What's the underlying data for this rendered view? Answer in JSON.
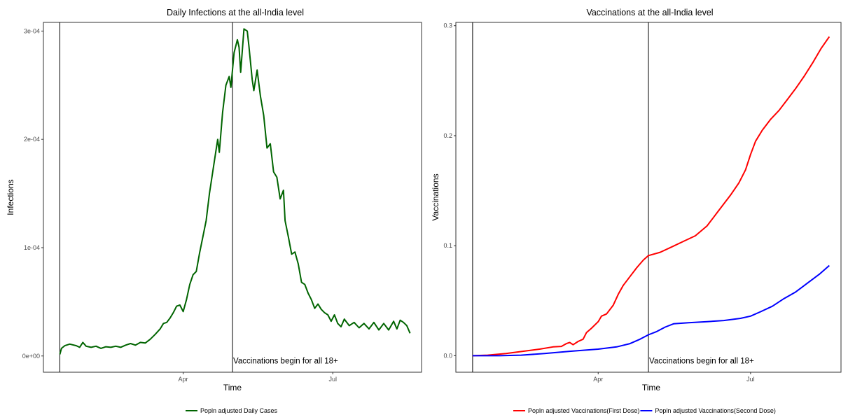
{
  "chart_data": [
    {
      "type": "line",
      "title": "Daily Infections at the all-India level",
      "xlabel": "Time",
      "ylabel": "Infections",
      "x_tick_labels": [
        "Apr",
        "Jul"
      ],
      "y_tick_labels": [
        "0e+00",
        "1e-04",
        "2e-04",
        "3e-04"
      ],
      "y_ticks": [
        0,
        0.0001,
        0.0002,
        0.0003
      ],
      "ylim": [
        -1.5e-05,
        0.000308
      ],
      "xlim": [
        "2021-01-06",
        "2021-08-24"
      ],
      "x_ticks": [
        "2021-04-01",
        "2021-07-01"
      ],
      "grid": false,
      "legend_position": "bottom",
      "vlines": [
        "2021-01-16",
        "2021-05-01"
      ],
      "annotation": {
        "text": "Vaccinations begin for all 18+",
        "x": "2021-05-01",
        "y": -4.5e-06
      },
      "series": [
        {
          "name": "Popln adjusted Daily Cases",
          "color": "#006400",
          "points": [
            [
              "2021-01-16",
              1.5e-06
            ],
            [
              "2021-01-17",
              7e-06
            ],
            [
              "2021-01-19",
              9.5e-06
            ],
            [
              "2021-01-22",
              1.1e-05
            ],
            [
              "2021-01-26",
              9.5e-06
            ],
            [
              "2021-01-28",
              8e-06
            ],
            [
              "2021-01-30",
              1.25e-05
            ],
            [
              "2021-02-01",
              9e-06
            ],
            [
              "2021-02-04",
              8e-06
            ],
            [
              "2021-02-07",
              9e-06
            ],
            [
              "2021-02-10",
              7e-06
            ],
            [
              "2021-02-13",
              8.5e-06
            ],
            [
              "2021-02-16",
              8e-06
            ],
            [
              "2021-02-19",
              9e-06
            ],
            [
              "2021-02-22",
              8e-06
            ],
            [
              "2021-02-25",
              1e-05
            ],
            [
              "2021-02-28",
              1.15e-05
            ],
            [
              "2021-03-03",
              1e-05
            ],
            [
              "2021-03-06",
              1.25e-05
            ],
            [
              "2021-03-09",
              1.2e-05
            ],
            [
              "2021-03-12",
              1.55e-05
            ],
            [
              "2021-03-15",
              2e-05
            ],
            [
              "2021-03-18",
              2.5e-05
            ],
            [
              "2021-03-20",
              3e-05
            ],
            [
              "2021-03-22",
              3.1e-05
            ],
            [
              "2021-03-24",
              3.5e-05
            ],
            [
              "2021-03-26",
              4e-05
            ],
            [
              "2021-03-28",
              4.6e-05
            ],
            [
              "2021-03-30",
              4.7e-05
            ],
            [
              "2021-04-01",
              4.1e-05
            ],
            [
              "2021-04-03",
              5.2e-05
            ],
            [
              "2021-04-05",
              6.6e-05
            ],
            [
              "2021-04-07",
              7.5e-05
            ],
            [
              "2021-04-09",
              7.8e-05
            ],
            [
              "2021-04-11",
              9.5e-05
            ],
            [
              "2021-04-13",
              0.00011
            ],
            [
              "2021-04-15",
              0.000125
            ],
            [
              "2021-04-17",
              0.00015
            ],
            [
              "2021-04-19",
              0.00017
            ],
            [
              "2021-04-21",
              0.00019
            ],
            [
              "2021-04-22",
              0.0002
            ],
            [
              "2021-04-23",
              0.000188
            ],
            [
              "2021-04-25",
              0.000225
            ],
            [
              "2021-04-27",
              0.00025
            ],
            [
              "2021-04-29",
              0.000258
            ],
            [
              "2021-04-30",
              0.000248
            ],
            [
              "2021-05-02",
              0.00028
            ],
            [
              "2021-05-04",
              0.000292
            ],
            [
              "2021-05-05",
              0.000285
            ],
            [
              "2021-05-06",
              0.000262
            ],
            [
              "2021-05-08",
              0.000302
            ],
            [
              "2021-05-10",
              0.0003
            ],
            [
              "2021-05-11",
              0.000286
            ],
            [
              "2021-05-13",
              0.000255
            ],
            [
              "2021-05-14",
              0.000245
            ],
            [
              "2021-05-16",
              0.000264
            ],
            [
              "2021-05-18",
              0.00024
            ],
            [
              "2021-05-20",
              0.000222
            ],
            [
              "2021-05-22",
              0.000192
            ],
            [
              "2021-05-24",
              0.000196
            ],
            [
              "2021-05-26",
              0.00017
            ],
            [
              "2021-05-28",
              0.000165
            ],
            [
              "2021-05-30",
              0.000145
            ],
            [
              "2021-06-01",
              0.000153
            ],
            [
              "2021-06-02",
              0.000125
            ],
            [
              "2021-06-04",
              0.00011
            ],
            [
              "2021-06-06",
              9.4e-05
            ],
            [
              "2021-06-08",
              9.6e-05
            ],
            [
              "2021-06-10",
              8.5e-05
            ],
            [
              "2021-06-12",
              6.8e-05
            ],
            [
              "2021-06-14",
              6.6e-05
            ],
            [
              "2021-06-16",
              5.8e-05
            ],
            [
              "2021-06-18",
              5.2e-05
            ],
            [
              "2021-06-20",
              4.4e-05
            ],
            [
              "2021-06-22",
              4.8e-05
            ],
            [
              "2021-06-24",
              4.3e-05
            ],
            [
              "2021-06-26",
              4e-05
            ],
            [
              "2021-06-28",
              3.8e-05
            ],
            [
              "2021-06-30",
              3.2e-05
            ],
            [
              "2021-07-02",
              3.8e-05
            ],
            [
              "2021-07-04",
              3e-05
            ],
            [
              "2021-07-06",
              2.7e-05
            ],
            [
              "2021-07-08",
              3.4e-05
            ],
            [
              "2021-07-11",
              2.8e-05
            ],
            [
              "2021-07-14",
              3.1e-05
            ],
            [
              "2021-07-17",
              2.6e-05
            ],
            [
              "2021-07-20",
              3e-05
            ],
            [
              "2021-07-23",
              2.5e-05
            ],
            [
              "2021-07-26",
              3.1e-05
            ],
            [
              "2021-07-29",
              2.4e-05
            ],
            [
              "2021-08-01",
              3e-05
            ],
            [
              "2021-08-04",
              2.4e-05
            ],
            [
              "2021-08-07",
              3.2e-05
            ],
            [
              "2021-08-09",
              2.5e-05
            ],
            [
              "2021-08-11",
              3.3e-05
            ],
            [
              "2021-08-13",
              3.1e-05
            ],
            [
              "2021-08-15",
              2.8e-05
            ],
            [
              "2021-08-17",
              2.1e-05
            ]
          ]
        }
      ]
    },
    {
      "type": "line",
      "title": "Vaccinations at the all-India level",
      "xlabel": "Time",
      "ylabel": "Vaccinations",
      "x_tick_labels": [
        "Apr",
        "Jul"
      ],
      "y_tick_labels": [
        "0.0",
        "0.1",
        "0.2",
        "0.3"
      ],
      "y_ticks": [
        0,
        0.1,
        0.2,
        0.3
      ],
      "ylim": [
        -0.015,
        0.303
      ],
      "xlim": [
        "2021-01-06",
        "2021-08-24"
      ],
      "x_ticks": [
        "2021-04-01",
        "2021-07-01"
      ],
      "grid": false,
      "legend_position": "bottom",
      "vlines": [
        "2021-01-16",
        "2021-05-01"
      ],
      "annotation": {
        "text": "Vaccinations begin for all 18+",
        "x": "2021-05-01",
        "y": -0.0045
      },
      "series": [
        {
          "name": "Popln adjusted Vaccinations(First Dose)",
          "color": "#ff0000",
          "points": [
            [
              "2021-01-16",
              0.0
            ],
            [
              "2021-01-25",
              0.0005
            ],
            [
              "2021-02-05",
              0.002
            ],
            [
              "2021-02-15",
              0.004
            ],
            [
              "2021-02-25",
              0.006
            ],
            [
              "2021-03-05",
              0.008
            ],
            [
              "2021-03-10",
              0.0085
            ],
            [
              "2021-03-13",
              0.011
            ],
            [
              "2021-03-15",
              0.012
            ],
            [
              "2021-03-17",
              0.01
            ],
            [
              "2021-03-20",
              0.013
            ],
            [
              "2021-03-23",
              0.015
            ],
            [
              "2021-03-25",
              0.021
            ],
            [
              "2021-03-28",
              0.025
            ],
            [
              "2021-04-01",
              0.031
            ],
            [
              "2021-04-03",
              0.036
            ],
            [
              "2021-04-06",
              0.038
            ],
            [
              "2021-04-10",
              0.046
            ],
            [
              "2021-04-13",
              0.056
            ],
            [
              "2021-04-16",
              0.064
            ],
            [
              "2021-04-20",
              0.072
            ],
            [
              "2021-04-24",
              0.08
            ],
            [
              "2021-04-28",
              0.087
            ],
            [
              "2021-05-01",
              0.091
            ],
            [
              "2021-05-08",
              0.094
            ],
            [
              "2021-05-15",
              0.099
            ],
            [
              "2021-05-22",
              0.104
            ],
            [
              "2021-05-29",
              0.109
            ],
            [
              "2021-06-05",
              0.118
            ],
            [
              "2021-06-12",
              0.132
            ],
            [
              "2021-06-19",
              0.146
            ],
            [
              "2021-06-24",
              0.157
            ],
            [
              "2021-06-28",
              0.169
            ],
            [
              "2021-07-01",
              0.183
            ],
            [
              "2021-07-04",
              0.195
            ],
            [
              "2021-07-08",
              0.205
            ],
            [
              "2021-07-13",
              0.215
            ],
            [
              "2021-07-18",
              0.223
            ],
            [
              "2021-07-23",
              0.233
            ],
            [
              "2021-07-28",
              0.243
            ],
            [
              "2021-08-02",
              0.254
            ],
            [
              "2021-08-07",
              0.266
            ],
            [
              "2021-08-12",
              0.279
            ],
            [
              "2021-08-17",
              0.29
            ]
          ]
        },
        {
          "name": "Popln adjusted Vaccinations(Second Dose)",
          "color": "#0000ff",
          "points": [
            [
              "2021-01-16",
              0.0
            ],
            [
              "2021-02-01",
              0.0
            ],
            [
              "2021-02-14",
              0.0005
            ],
            [
              "2021-02-28",
              0.002
            ],
            [
              "2021-03-15",
              0.004
            ],
            [
              "2021-04-01",
              0.006
            ],
            [
              "2021-04-12",
              0.008
            ],
            [
              "2021-04-20",
              0.011
            ],
            [
              "2021-04-26",
              0.015
            ],
            [
              "2021-05-01",
              0.019
            ],
            [
              "2021-05-06",
              0.022
            ],
            [
              "2021-05-11",
              0.026
            ],
            [
              "2021-05-16",
              0.029
            ],
            [
              "2021-05-25",
              0.03
            ],
            [
              "2021-06-05",
              0.031
            ],
            [
              "2021-06-15",
              0.032
            ],
            [
              "2021-06-25",
              0.034
            ],
            [
              "2021-07-01",
              0.036
            ],
            [
              "2021-07-07",
              0.04
            ],
            [
              "2021-07-14",
              0.045
            ],
            [
              "2021-07-21",
              0.052
            ],
            [
              "2021-07-28",
              0.058
            ],
            [
              "2021-08-04",
              0.066
            ],
            [
              "2021-08-11",
              0.074
            ],
            [
              "2021-08-17",
              0.082
            ]
          ]
        }
      ]
    }
  ]
}
